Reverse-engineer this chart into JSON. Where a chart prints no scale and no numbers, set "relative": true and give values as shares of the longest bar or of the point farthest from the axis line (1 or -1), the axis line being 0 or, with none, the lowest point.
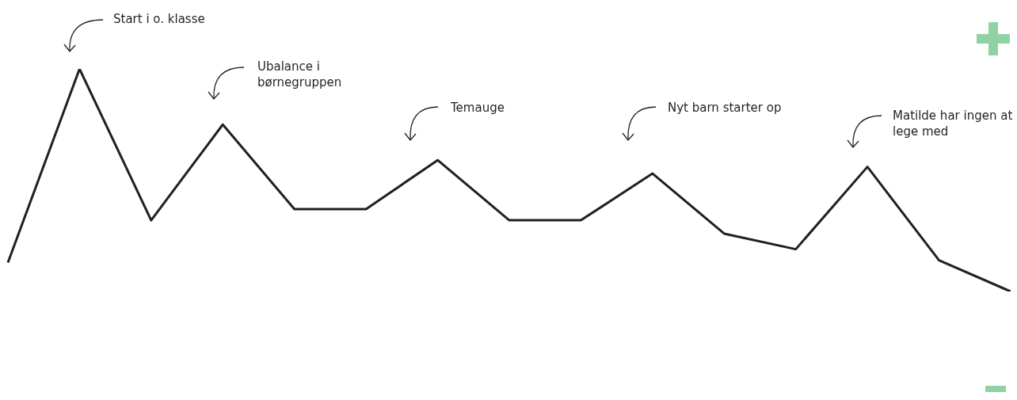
{
  "chart_data": {
    "type": "line",
    "relative": true,
    "categories": [
      null,
      null,
      null,
      null,
      null,
      null,
      null,
      null,
      null,
      null,
      null,
      null,
      null,
      null,
      null
    ],
    "series": [
      {
        "color": "#231f20",
        "values": [
          0.13,
          1,
          0.32,
          0.75,
          0.37,
          0.37,
          0.59,
          0.32,
          0.32,
          0.53,
          0.26,
          0.19,
          0.56,
          0.14,
          0
        ]
      }
    ],
    "marker": "none",
    "line_style": "solid",
    "grid": false,
    "legend": false,
    "annotations": [
      "Start i o. klasse",
      "Ubalance i børnegruppen",
      "Temauge",
      "Nyt barn starter op",
      "Matilde har ingen at lege med"
    ]
  }
}
